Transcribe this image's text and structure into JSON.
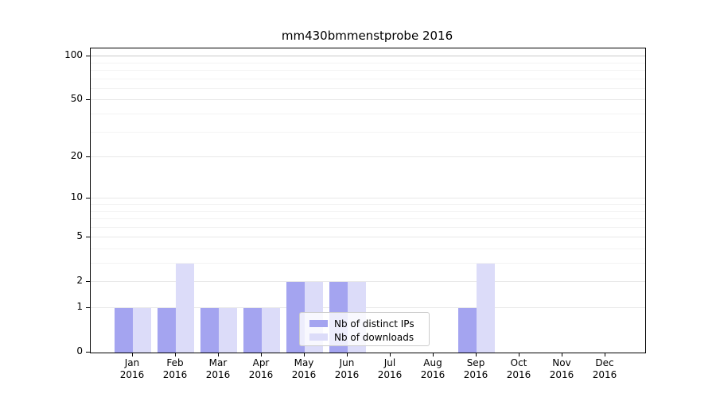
{
  "chart_data": {
    "type": "bar",
    "title": "mm430bmmenstprobe 2016",
    "categories": [
      "Jan",
      "Feb",
      "Mar",
      "Apr",
      "May",
      "Jun",
      "Jul",
      "Aug",
      "Sep",
      "Oct",
      "Nov",
      "Dec"
    ],
    "category_year": "2016",
    "series": [
      {
        "name": "Nb of distinct IPs",
        "color": "#a4a4f0",
        "values": [
          1,
          1,
          1,
          1,
          2,
          2,
          0,
          0,
          1,
          0,
          0,
          0
        ]
      },
      {
        "name": "Nb of downloads",
        "color": "#dcdcf9",
        "values": [
          1,
          3,
          1,
          1,
          2,
          2,
          0,
          0,
          3,
          0,
          0,
          0
        ]
      }
    ],
    "yaxis": {
      "scale": "log1p",
      "min": 0,
      "max": 113.5,
      "major_ticks": [
        0,
        1,
        2,
        5,
        10,
        20,
        50,
        100
      ],
      "minor_ticks": [
        3,
        4,
        6,
        7,
        8,
        9,
        30,
        40,
        60,
        70,
        80,
        90
      ]
    },
    "legend_position": "lower center",
    "grid": true,
    "colors": {
      "axis": "#000000",
      "top_gridline": "#c9c9c9",
      "major_gridline": "#e8e8e8",
      "minor_gridline": "#f3f3f3",
      "legend_border": "#cccccc"
    }
  }
}
